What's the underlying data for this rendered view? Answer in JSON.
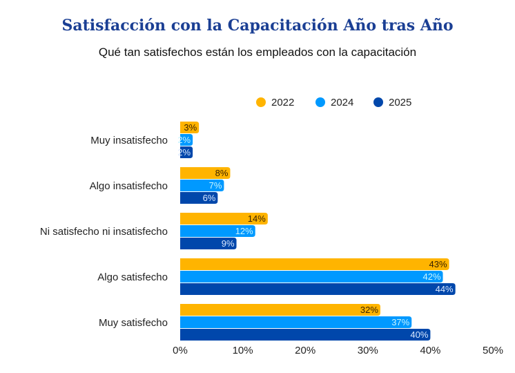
{
  "chart_data": {
    "type": "bar",
    "orientation": "horizontal",
    "title": "Satisfacción con la Capacitación Año tras Año",
    "subtitle": "Qué tan satisfechos están los empleados con la capacitación",
    "categories": [
      "Muy insatisfecho",
      "Algo insatisfecho",
      "Ni satisfecho ni insatisfecho",
      "Algo satisfecho",
      "Muy satisfecho"
    ],
    "series": [
      {
        "name": "2022",
        "color": "#FFB400",
        "label_color": "#3a2200",
        "values": [
          3,
          8,
          14,
          43,
          32
        ]
      },
      {
        "name": "2024",
        "color": "#0099FF",
        "label_color": "#c8f4ff",
        "values": [
          2,
          7,
          12,
          42,
          37
        ]
      },
      {
        "name": "2025",
        "color": "#0047AB",
        "label_color": "#dbe8ff",
        "values": [
          2,
          6,
          9,
          44,
          40
        ]
      }
    ],
    "xlim": [
      0,
      50
    ],
    "xticks": [
      "0%",
      "10%",
      "20%",
      "30%",
      "40%",
      "50%"
    ],
    "value_suffix": "%",
    "legend_position": "top-right",
    "grid": false
  }
}
